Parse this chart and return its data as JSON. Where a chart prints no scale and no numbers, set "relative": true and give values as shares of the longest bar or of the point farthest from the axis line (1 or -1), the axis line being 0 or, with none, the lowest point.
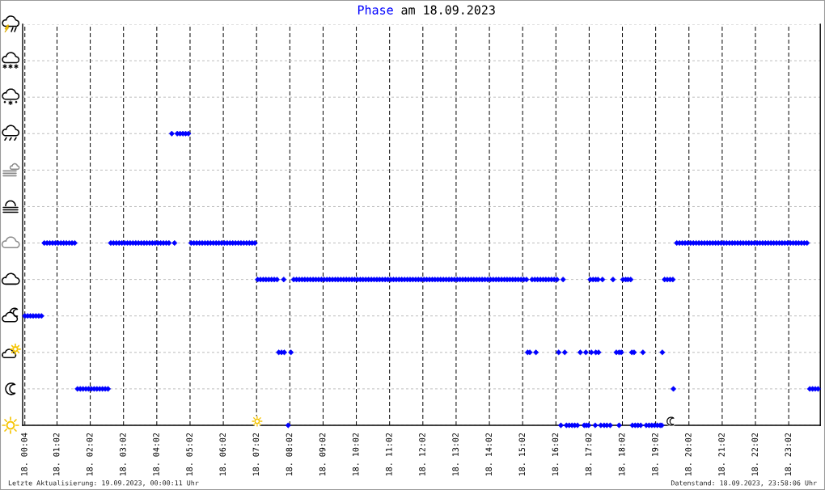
{
  "chart_data": {
    "type": "scatter",
    "title": "am 18.09.2023",
    "relative": true,
    "marker": "diamond",
    "grid": true,
    "tick_labels": "x",
    "xlim": [
      "2023-09-18T00:00",
      "2023-09-18T23:59"
    ],
    "xticks": [
      {
        "value": "2023-09-18T00:04",
        "label": "18. 00:04"
      },
      {
        "value": "2023-09-18T01:02",
        "label": "18. 01:02"
      },
      {
        "value": "2023-09-18T02:02",
        "label": "18. 02:02"
      },
      {
        "value": "2023-09-18T03:02",
        "label": "18. 03:02"
      },
      {
        "value": "2023-09-18T04:02",
        "label": "18. 04:02"
      },
      {
        "value": "2023-09-18T05:02",
        "label": "18. 05:02"
      },
      {
        "value": "2023-09-18T06:02",
        "label": "18. 06:02"
      },
      {
        "value": "2023-09-18T07:02",
        "label": "18. 07:02"
      },
      {
        "value": "2023-09-18T08:02",
        "label": "18. 08:02"
      },
      {
        "value": "2023-09-18T09:02",
        "label": "18. 09:02"
      },
      {
        "value": "2023-09-18T10:02",
        "label": "18. 10:02"
      },
      {
        "value": "2023-09-18T11:02",
        "label": "18. 11:02"
      },
      {
        "value": "2023-09-18T12:02",
        "label": "18. 12:02"
      },
      {
        "value": "2023-09-18T13:02",
        "label": "18. 13:02"
      },
      {
        "value": "2023-09-18T14:02",
        "label": "18. 14:02"
      },
      {
        "value": "2023-09-18T15:02",
        "label": "18. 15:02"
      },
      {
        "value": "2023-09-18T16:02",
        "label": "18. 16:02"
      },
      {
        "value": "2023-09-18T17:02",
        "label": "18. 17:02"
      },
      {
        "value": "2023-09-18T18:02",
        "label": "18. 18:02"
      },
      {
        "value": "2023-09-18T19:02",
        "label": "18. 19:02"
      },
      {
        "value": "2023-09-18T20:02",
        "label": "18. 20:02"
      },
      {
        "value": "2023-09-18T21:02",
        "label": "18. 21:02"
      },
      {
        "value": "2023-09-18T22:02",
        "label": "18. 22:02"
      },
      {
        "value": "2023-09-18T23:02",
        "label": "18. 23:02"
      }
    ],
    "annotations": [
      "Letzte Aktualisierung: 19.09.2023, 00:00:11 Uhr",
      "Datenstand: 18.09.2023, 23:58:06 Uhr"
    ],
    "x": [
      "2023-09-18T00:04",
      "2023-09-18T00:09",
      "2023-09-18T00:14",
      "2023-09-18T00:19",
      "2023-09-18T00:24",
      "2023-09-18T00:29",
      "2023-09-18T00:34",
      "2023-09-18T00:39",
      "2023-09-18T00:44",
      "2023-09-18T00:49",
      "2023-09-18T00:54",
      "2023-09-18T00:59",
      "2023-09-18T01:04",
      "2023-09-18T01:09",
      "2023-09-18T01:14",
      "2023-09-18T01:19",
      "2023-09-18T01:24",
      "2023-09-18T01:29",
      "2023-09-18T01:34",
      "2023-09-18T01:39",
      "2023-09-18T01:44",
      "2023-09-18T01:49",
      "2023-09-18T01:54",
      "2023-09-18T01:59",
      "2023-09-18T02:04",
      "2023-09-18T02:09",
      "2023-09-18T02:14",
      "2023-09-18T02:19",
      "2023-09-18T02:24",
      "2023-09-18T02:29",
      "2023-09-18T02:34",
      "2023-09-18T02:39",
      "2023-09-18T02:44",
      "2023-09-18T02:49",
      "2023-09-18T02:54",
      "2023-09-18T02:59",
      "2023-09-18T03:04",
      "2023-09-18T03:09",
      "2023-09-18T03:14",
      "2023-09-18T03:19",
      "2023-09-18T03:24",
      "2023-09-18T03:29",
      "2023-09-18T03:34",
      "2023-09-18T03:39",
      "2023-09-18T03:44",
      "2023-09-18T03:49",
      "2023-09-18T03:54",
      "2023-09-18T03:59",
      "2023-09-18T04:04",
      "2023-09-18T04:09",
      "2023-09-18T04:14",
      "2023-09-18T04:19",
      "2023-09-18T04:24",
      "2023-09-18T04:29",
      "2023-09-18T04:34",
      "2023-09-18T04:39",
      "2023-09-18T04:44",
      "2023-09-18T04:49",
      "2023-09-18T04:54",
      "2023-09-18T04:59",
      "2023-09-18T05:04",
      "2023-09-18T05:09",
      "2023-09-18T05:14",
      "2023-09-18T05:19",
      "2023-09-18T05:24",
      "2023-09-18T05:29",
      "2023-09-18T05:34",
      "2023-09-18T05:39",
      "2023-09-18T05:44",
      "2023-09-18T05:49",
      "2023-09-18T05:54",
      "2023-09-18T05:59",
      "2023-09-18T06:04",
      "2023-09-18T06:09",
      "2023-09-18T06:14",
      "2023-09-18T06:19",
      "2023-09-18T06:24",
      "2023-09-18T06:29",
      "2023-09-18T06:34",
      "2023-09-18T06:39",
      "2023-09-18T06:44",
      "2023-09-18T06:49",
      "2023-09-18T06:54",
      "2023-09-18T06:59",
      "2023-09-18T07:04",
      "2023-09-18T07:09",
      "2023-09-18T07:14",
      "2023-09-18T07:19",
      "2023-09-18T07:24",
      "2023-09-18T07:29",
      "2023-09-18T07:34",
      "2023-09-18T07:39",
      "2023-09-18T07:42",
      "2023-09-18T07:47",
      "2023-09-18T07:52",
      "2023-09-18T07:51",
      "2023-09-18T07:59",
      "2023-09-18T08:04",
      "2023-09-18T08:09",
      "2023-09-18T08:14",
      "2023-09-18T08:19",
      "2023-09-18T08:24",
      "2023-09-18T08:29",
      "2023-09-18T08:34",
      "2023-09-18T08:39",
      "2023-09-18T08:44",
      "2023-09-18T08:49",
      "2023-09-18T08:54",
      "2023-09-18T08:59",
      "2023-09-18T09:04",
      "2023-09-18T09:09",
      "2023-09-18T09:14",
      "2023-09-18T09:19",
      "2023-09-18T09:24",
      "2023-09-18T09:29",
      "2023-09-18T09:34",
      "2023-09-18T09:39",
      "2023-09-18T09:44",
      "2023-09-18T09:49",
      "2023-09-18T09:54",
      "2023-09-18T09:59",
      "2023-09-18T10:04",
      "2023-09-18T10:09",
      "2023-09-18T10:14",
      "2023-09-18T10:19",
      "2023-09-18T10:24",
      "2023-09-18T10:29",
      "2023-09-18T10:34",
      "2023-09-18T10:39",
      "2023-09-18T10:44",
      "2023-09-18T10:49",
      "2023-09-18T10:54",
      "2023-09-18T10:59",
      "2023-09-18T11:04",
      "2023-09-18T11:09",
      "2023-09-18T11:14",
      "2023-09-18T11:19",
      "2023-09-18T11:24",
      "2023-09-18T11:29",
      "2023-09-18T11:34",
      "2023-09-18T11:39",
      "2023-09-18T11:44",
      "2023-09-18T11:49",
      "2023-09-18T11:54",
      "2023-09-18T11:59",
      "2023-09-18T12:04",
      "2023-09-18T12:09",
      "2023-09-18T12:14",
      "2023-09-18T12:19",
      "2023-09-18T12:24",
      "2023-09-18T12:29",
      "2023-09-18T12:34",
      "2023-09-18T12:39",
      "2023-09-18T12:44",
      "2023-09-18T12:49",
      "2023-09-18T12:54",
      "2023-09-18T12:59",
      "2023-09-18T13:04",
      "2023-09-18T13:09",
      "2023-09-18T13:14",
      "2023-09-18T13:19",
      "2023-09-18T13:24",
      "2023-09-18T13:29",
      "2023-09-18T13:34",
      "2023-09-18T13:39",
      "2023-09-18T13:44",
      "2023-09-18T13:49",
      "2023-09-18T13:54",
      "2023-09-18T13:59",
      "2023-09-18T14:04",
      "2023-09-18T14:09",
      "2023-09-18T14:14",
      "2023-09-18T14:19",
      "2023-09-18T14:24",
      "2023-09-18T14:29",
      "2023-09-18T14:34",
      "2023-09-18T14:39",
      "2023-09-18T14:44",
      "2023-09-18T14:49",
      "2023-09-18T14:54",
      "2023-09-18T14:59",
      "2023-09-18T15:04",
      "2023-09-18T15:09",
      "2023-09-18T15:19",
      "2023-09-18T15:24",
      "2023-09-18T15:29",
      "2023-09-18T15:34",
      "2023-09-18T15:39",
      "2023-09-18T15:44",
      "2023-09-18T15:49",
      "2023-09-18T15:54",
      "2023-09-18T15:59",
      "2023-09-18T16:04",
      "2023-09-18T16:15",
      "2023-09-18T17:04",
      "2023-09-18T17:09",
      "2023-09-18T17:14",
      "2023-09-18T17:18",
      "2023-09-18T17:26",
      "2023-09-18T17:45",
      "2023-09-18T18:03",
      "2023-09-18T18:08",
      "2023-09-18T18:12",
      "2023-09-18T18:17",
      "2023-09-18T19:18",
      "2023-09-18T19:23",
      "2023-09-18T19:28",
      "2023-09-18T19:33",
      "2023-09-18T15:11",
      "2023-09-18T15:15",
      "2023-09-18T15:26",
      "2023-09-18T16:07",
      "2023-09-18T16:18",
      "2023-09-18T16:46",
      "2023-09-18T16:56",
      "2023-09-18T17:06",
      "2023-09-18T17:14",
      "2023-09-18T17:19",
      "2023-09-18T17:51",
      "2023-09-18T17:56",
      "2023-09-18T18:00",
      "2023-09-18T18:19",
      "2023-09-18T18:23",
      "2023-09-18T18:39",
      "2023-09-18T19:14",
      "2023-09-18T16:11",
      "2023-09-18T16:21",
      "2023-09-18T16:26",
      "2023-09-18T16:31",
      "2023-09-18T16:36",
      "2023-09-18T16:41",
      "2023-09-18T16:53",
      "2023-09-18T16:57",
      "2023-09-18T17:01",
      "2023-09-18T17:13",
      "2023-09-18T17:23",
      "2023-09-18T17:29",
      "2023-09-18T17:34",
      "2023-09-18T17:40",
      "2023-09-18T17:56",
      "2023-09-18T18:20",
      "2023-09-18T18:25",
      "2023-09-18T18:30",
      "2023-09-18T18:35",
      "2023-09-18T18:45",
      "2023-09-18T18:50",
      "2023-09-18T18:55",
      "2023-09-18T19:00",
      "2023-09-18T19:05",
      "2023-09-18T19:10",
      "2023-09-18T19:13",
      "2023-09-18T19:34",
      "2023-09-18T19:40",
      "2023-09-18T19:45",
      "2023-09-18T19:50",
      "2023-09-18T19:55",
      "2023-09-18T20:00",
      "2023-09-18T20:05",
      "2023-09-18T20:10",
      "2023-09-18T20:15",
      "2023-09-18T20:20",
      "2023-09-18T20:25",
      "2023-09-18T20:30",
      "2023-09-18T20:35",
      "2023-09-18T20:40",
      "2023-09-18T20:45",
      "2023-09-18T20:50",
      "2023-09-18T20:55",
      "2023-09-18T21:00",
      "2023-09-18T21:05",
      "2023-09-18T21:10",
      "2023-09-18T21:15",
      "2023-09-18T21:20",
      "2023-09-18T21:25",
      "2023-09-18T21:30",
      "2023-09-18T21:35",
      "2023-09-18T21:40",
      "2023-09-18T21:45",
      "2023-09-18T21:50",
      "2023-09-18T21:55",
      "2023-09-18T22:00",
      "2023-09-18T22:05",
      "2023-09-18T22:10",
      "2023-09-18T22:15",
      "2023-09-18T22:20",
      "2023-09-18T22:25",
      "2023-09-18T22:30",
      "2023-09-18T22:35",
      "2023-09-18T22:40",
      "2023-09-18T22:45",
      "2023-09-18T22:50",
      "2023-09-18T22:55",
      "2023-09-18T23:00",
      "2023-09-18T23:05",
      "2023-09-18T23:10",
      "2023-09-18T23:15",
      "2023-09-18T23:20",
      "2023-09-18T23:25",
      "2023-09-18T23:30",
      "2023-09-18T23:35",
      "2023-09-18T23:40",
      "2023-09-18T23:45",
      "2023-09-18T23:50",
      "2023-09-18T23:55"
    ],
    "series": [
      {
        "name": "Phase",
        "color": "#0000ff",
        "values": [
          0.375,
          0.375,
          0.375,
          0.375,
          0.375,
          0.375,
          0.375,
          0.625,
          0.625,
          0.625,
          0.625,
          0.625,
          0.625,
          0.625,
          0.625,
          0.625,
          0.625,
          0.625,
          0.625,
          0.125,
          0.125,
          0.125,
          0.125,
          0.125,
          0.125,
          0.125,
          0.125,
          0.125,
          0.125,
          0.125,
          0.125,
          0.625,
          0.625,
          0.625,
          0.625,
          0.625,
          0.625,
          0.625,
          0.625,
          0.625,
          0.625,
          0.625,
          0.625,
          0.625,
          0.625,
          0.625,
          0.625,
          0.625,
          0.625,
          0.625,
          0.625,
          0.625,
          0.625,
          1,
          0.625,
          1,
          1,
          1,
          1,
          1,
          0.625,
          0.625,
          0.625,
          0.625,
          0.625,
          0.625,
          0.625,
          0.625,
          0.625,
          0.625,
          0.625,
          0.625,
          0.625,
          0.625,
          0.625,
          0.625,
          0.625,
          0.625,
          0.625,
          0.625,
          0.625,
          0.625,
          0.625,
          0.625,
          0.5,
          0.5,
          0.5,
          0.5,
          0.5,
          0.5,
          0.5,
          0.5,
          0.25,
          0.25,
          0.25,
          0.5,
          0,
          0.25,
          0.5,
          0.5,
          0.5,
          0.5,
          0.5,
          0.5,
          0.5,
          0.5,
          0.5,
          0.5,
          0.5,
          0.5,
          0.5,
          0.5,
          0.5,
          0.5,
          0.5,
          0.5,
          0.5,
          0.5,
          0.5,
          0.5,
          0.5,
          0.5,
          0.5,
          0.5,
          0.5,
          0.5,
          0.5,
          0.5,
          0.5,
          0.5,
          0.5,
          0.5,
          0.5,
          0.5,
          0.5,
          0.5,
          0.5,
          0.5,
          0.5,
          0.5,
          0.5,
          0.5,
          0.5,
          0.5,
          0.5,
          0.5,
          0.5,
          0.5,
          0.5,
          0.5,
          0.5,
          0.5,
          0.5,
          0.5,
          0.5,
          0.5,
          0.5,
          0.5,
          0.5,
          0.5,
          0.5,
          0.5,
          0.5,
          0.5,
          0.5,
          0.5,
          0.5,
          0.5,
          0.5,
          0.5,
          0.5,
          0.5,
          0.5,
          0.5,
          0.5,
          0.5,
          0.5,
          0.5,
          0.5,
          0.5,
          0.5,
          0.5,
          0.5,
          0.5,
          0.5,
          0.5,
          0.5,
          0.5,
          0.5,
          0.5,
          0.5,
          0.5,
          0.5,
          0.5,
          0.5,
          0.5,
          0.5,
          0.5,
          0.5,
          0.5,
          0.5,
          0.5,
          0.5,
          0.5,
          0.5,
          0.5,
          0.5,
          0.5,
          0.25,
          0.25,
          0.25,
          0.25,
          0.25,
          0.25,
          0.25,
          0.25,
          0.25,
          0.25,
          0.25,
          0.25,
          0.25,
          0.25,
          0.25,
          0.25,
          0.25,
          0,
          0,
          0,
          0,
          0,
          0,
          0,
          0,
          0,
          0,
          0,
          0,
          0,
          0,
          0,
          0,
          0,
          0,
          0,
          0,
          0,
          0,
          0,
          0,
          0,
          0,
          0.125,
          0.625,
          0.625,
          0.625,
          0.625,
          0.625,
          0.625,
          0.625,
          0.625,
          0.625,
          0.625,
          0.625,
          0.625,
          0.625,
          0.625,
          0.625,
          0.625,
          0.625,
          0.625,
          0.625,
          0.625,
          0.625,
          0.625,
          0.625,
          0.625,
          0.625,
          0.625,
          0.625,
          0.625,
          0.625,
          0.625,
          0.625,
          0.625,
          0.625,
          0.625,
          0.625,
          0.625,
          0.625,
          0.625,
          0.625,
          0.625,
          0.625,
          0.625,
          0.625,
          0.625,
          0.625,
          0.625,
          0.625,
          0.625,
          0.125,
          0.125,
          0.125,
          0.125
        ]
      }
    ]
  }
}
